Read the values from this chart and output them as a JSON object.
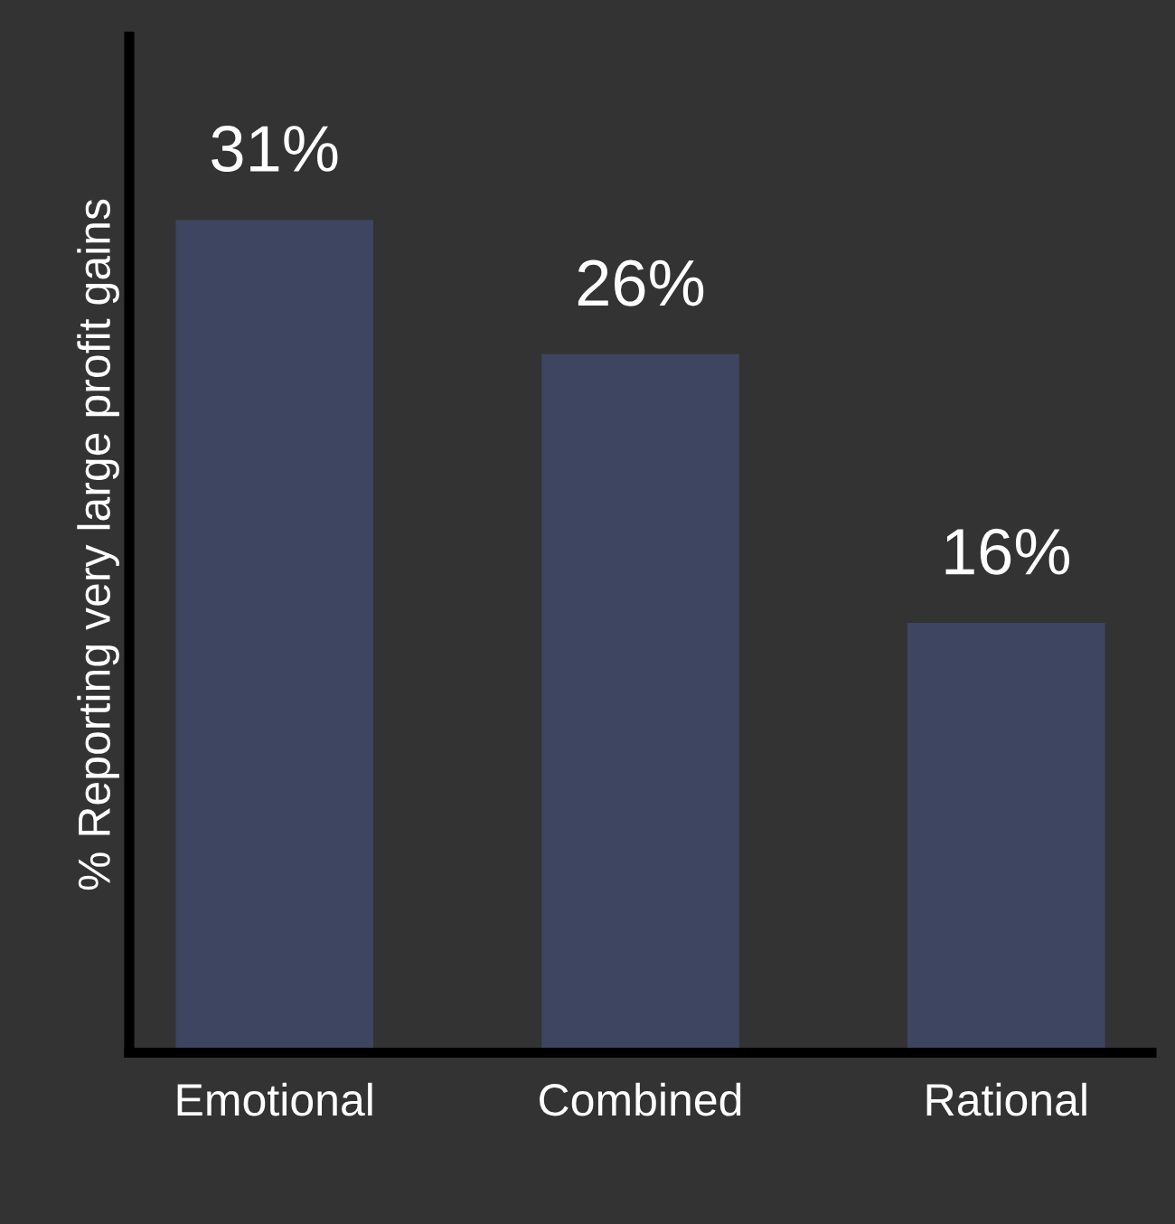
{
  "chart_data": {
    "type": "bar",
    "ylabel": "% Reporting very large profit gains",
    "categories": [
      "Emotional",
      "Combined",
      "Rational"
    ],
    "values": [
      31,
      26,
      16
    ],
    "color": "#3d4560",
    "value_labels": [
      "31%",
      "26%",
      "16%"
    ],
    "grid": false,
    "legend": false,
    "tick_labels": "x"
  }
}
